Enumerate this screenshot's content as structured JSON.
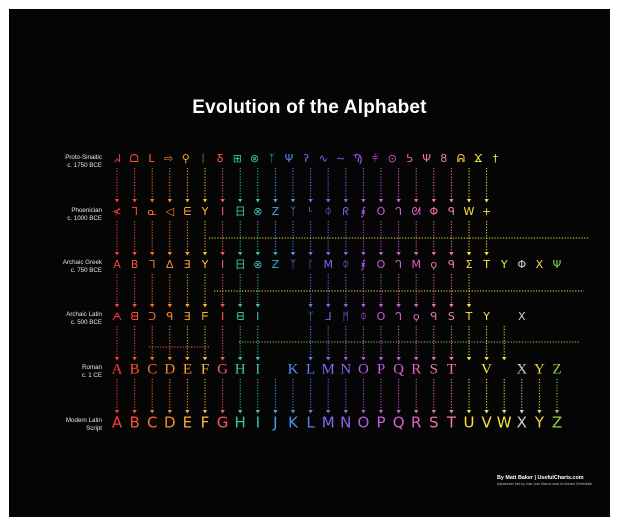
{
  "title": "Evolution of the Alphabet",
  "credit": {
    "main": "By Matt Baker | UsefulCharts.com",
    "sub": "Alphabetum font by Juan-José Marcos used for Ancient Greek/Italic"
  },
  "rows": [
    {
      "line1": "Proto-Sinaitic",
      "line2": "c. 1750 BCE"
    },
    {
      "line1": "Phoenician",
      "line2": "c. 1000 BCE"
    },
    {
      "line1": "Archaic Greek",
      "line2": "c. 750 BCE"
    },
    {
      "line1": "Archaic Latin",
      "line2": "c. 500 BCE"
    },
    {
      "line1": "Roman",
      "line2": "c. 1 CE"
    },
    {
      "line1": "Modern Latin",
      "line2": "Script"
    }
  ],
  "colors": {
    "A": "#ff3b3b",
    "B": "#ff5030",
    "C": "#ff6a2a",
    "D": "#ff8a28",
    "E": "#ffa531",
    "F": "#ffbf2e",
    "G": "#ff5a5a",
    "H": "#33c9a0",
    "I": "#3cc3b8",
    "J": "#43a6e8",
    "K": "#4f8ff2",
    "L": "#5d7ef5",
    "M": "#7b6cf0",
    "N": "#9360ee",
    "O": "#b15ae8",
    "P": "#c95ae0",
    "Q": "#d85fd0",
    "R": "#e263c0",
    "S": "#f06fb0",
    "T": "#f47e9e",
    "U": "#ffe33a",
    "V": "#ffe33a",
    "W": "#f2e34a",
    "X": "#cfcfcf",
    "Y": "#f5d64a",
    "Z": "#8bd64a"
  },
  "proto_sinaitic": [
    "ᖽ",
    "ᗝ",
    "ᒪ",
    "⇨",
    "⚲",
    "ᛁ",
    "Ᵹ",
    "⊞",
    "⊗",
    "ᛉ",
    "Ψ",
    "ʔ",
    "∿",
    "∼",
    "Ϡ",
    "⫩",
    "⊙",
    "ᕊ",
    "Ψ",
    "8",
    "ᕱ",
    "Ϫ",
    "†"
  ],
  "phoenician": [
    "≮",
    "ᒣ",
    "ᓇ",
    "◁",
    "ᗴ",
    "Y",
    "I",
    "日",
    "⊗",
    "Z",
    "ᛉ",
    "ᒻ",
    "ᛰ",
    "ᖇ",
    "⨘",
    "O",
    "ᒉ",
    "ᘛ",
    "Φ",
    "ᑫ",
    "W",
    "+"
  ],
  "archaic_greek": [
    "A",
    "B",
    "ᒣ",
    "Δ",
    "Ǝ",
    "Y",
    "I",
    "日",
    "⊗",
    "Z",
    "ᛉ",
    "ᛚ",
    "M",
    "ᛰ",
    "⨘",
    "O",
    "ᒉ",
    "M",
    "ϙ",
    "ᑫ",
    "Σ",
    "T",
    "Y",
    "Φ",
    "X",
    "Ψ"
  ],
  "archaic_latin": [
    "ᗅ",
    "ᗺ",
    "ᑐ",
    "ᑫ",
    "Ǝ",
    "ᖴ",
    "I",
    "ᗺ",
    "I",
    "ᛉ",
    "ᒧ",
    "ᛗ",
    "ᛰ",
    "O",
    "ᒉ",
    "ϙ",
    "ᑫ",
    "S",
    "T",
    "Y",
    "X"
  ],
  "roman": [
    "A",
    "B",
    "C",
    "D",
    "E",
    "F",
    "G",
    "H",
    "I",
    "K",
    "L",
    "M",
    "N",
    "O",
    "P",
    "Q",
    "R",
    "S",
    "T",
    "V",
    "X",
    "Y",
    "Z"
  ],
  "modern": [
    "A",
    "B",
    "C",
    "D",
    "E",
    "F",
    "G",
    "H",
    "I",
    "J",
    "K",
    "L",
    "M",
    "N",
    "O",
    "P",
    "Q",
    "R",
    "S",
    "T",
    "U",
    "V",
    "W",
    "X",
    "Y",
    "Z"
  ]
}
